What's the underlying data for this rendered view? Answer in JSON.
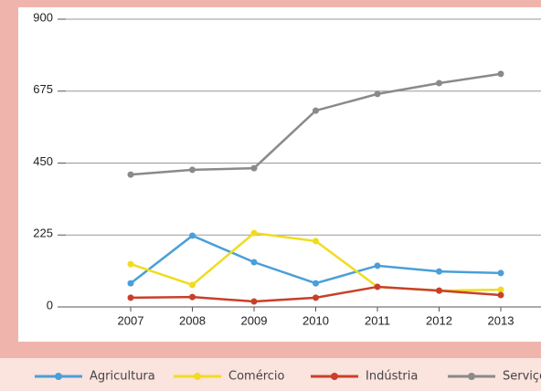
{
  "chart_data": {
    "type": "line",
    "categories": [
      "2007",
      "2008",
      "2009",
      "2010",
      "2011",
      "2012",
      "2013"
    ],
    "series": [
      {
        "name": "Agricultura",
        "color": "#4a9fd8",
        "values": [
          74,
          223,
          140,
          74,
          129,
          111,
          106
        ]
      },
      {
        "name": "Comércio",
        "color": "#f0dc1e",
        "values": [
          134,
          69,
          231,
          206,
          63,
          51,
          54
        ]
      },
      {
        "name": "Indústria",
        "color": "#c8402a",
        "values": [
          29,
          31,
          17,
          29,
          63,
          51,
          37
        ]
      },
      {
        "name": "Serviços",
        "color": "#8a8a8a",
        "values": [
          414,
          429,
          434,
          614,
          666,
          700,
          729
        ]
      }
    ],
    "ylim": [
      0,
      900
    ],
    "yticks": [
      0,
      225,
      450,
      675,
      900
    ],
    "grid": true,
    "legend": "bottom"
  }
}
